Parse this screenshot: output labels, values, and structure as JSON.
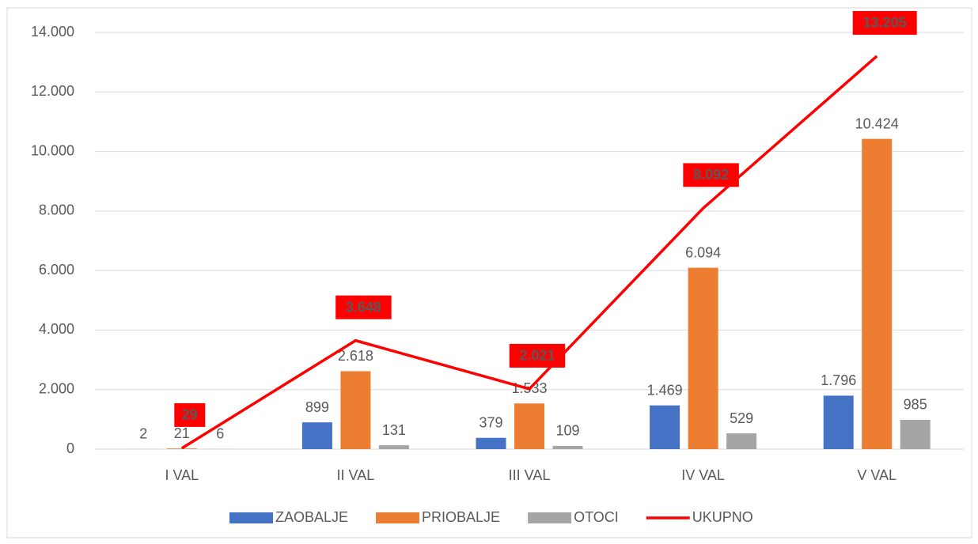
{
  "chart_data": {
    "type": "bar",
    "categories": [
      "I VAL",
      "II VAL",
      "III VAL",
      "IV VAL",
      "V VAL"
    ],
    "series": [
      {
        "name": "ZAOBALJE",
        "type": "bar",
        "color": "#4472c4",
        "values": [
          2,
          899,
          379,
          1469,
          1796
        ],
        "value_labels": [
          "2",
          "899",
          "379",
          "1.469",
          "1.796"
        ]
      },
      {
        "name": "PRIOBALJE",
        "type": "bar",
        "color": "#ed7d31",
        "values": [
          21,
          2618,
          1533,
          6094,
          10424
        ],
        "value_labels": [
          "21",
          "2.618",
          "1.533",
          "6.094",
          "10.424"
        ]
      },
      {
        "name": "OTOCI",
        "type": "bar",
        "color": "#a5a5a5",
        "values": [
          6,
          131,
          109,
          529,
          985
        ],
        "value_labels": [
          "6",
          "131",
          "109",
          "529",
          "985"
        ]
      },
      {
        "name": "UKUPNO",
        "type": "line",
        "color": "#ff0000",
        "values": [
          29,
          3648,
          2021,
          8092,
          13205
        ],
        "value_labels": [
          "29",
          "3.648",
          "2.021",
          "8.092",
          "13.205"
        ]
      }
    ],
    "ylim": [
      0,
      14000
    ],
    "yticks": [
      0,
      {
        "value": 2000,
        "label": "2.000"
      },
      {
        "value": 4000,
        "label": "4.000"
      },
      {
        "value": 6000,
        "label": "6.000"
      },
      {
        "value": 8000,
        "label": "8.000"
      },
      {
        "value": 10000,
        "label": "10.000"
      },
      {
        "value": 12000,
        "label": "12.000"
      },
      {
        "value": 14000,
        "label": "14.000"
      }
    ],
    "grid": true,
    "legend": "bottom"
  }
}
